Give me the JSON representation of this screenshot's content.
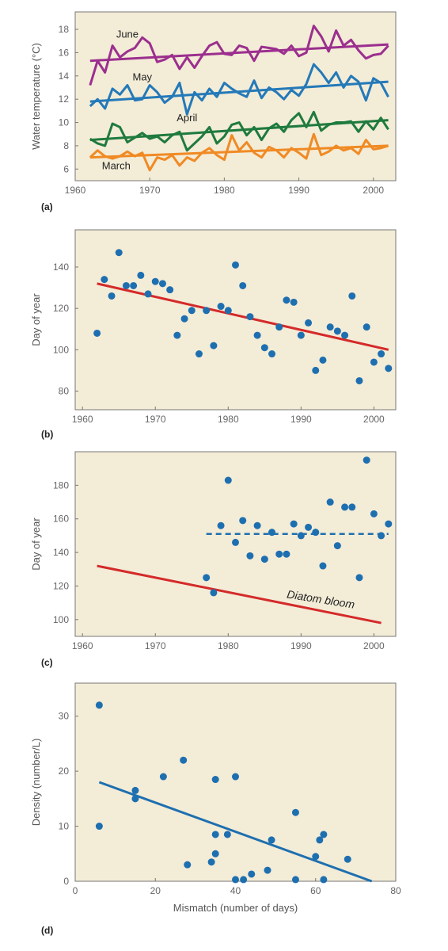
{
  "figure": {
    "panel_labels": [
      "(a)",
      "(b)",
      "(c)",
      "(d)"
    ]
  },
  "chart_data": [
    {
      "id": "a",
      "type": "line",
      "ylabel": "Water temperature (°C)",
      "xlabel": "",
      "xlim": [
        1960,
        2003
      ],
      "ylim": [
        5,
        19.5
      ],
      "xticks": [
        1960,
        1970,
        1980,
        1990,
        2000
      ],
      "yticks": [
        6,
        8,
        10,
        12,
        14,
        16,
        18
      ],
      "x": [
        1962,
        1963,
        1964,
        1965,
        1966,
        1967,
        1968,
        1969,
        1970,
        1971,
        1972,
        1973,
        1974,
        1975,
        1976,
        1977,
        1978,
        1979,
        1980,
        1981,
        1982,
        1983,
        1984,
        1985,
        1986,
        1987,
        1988,
        1989,
        1990,
        1991,
        1992,
        1993,
        1994,
        1995,
        1996,
        1997,
        1998,
        1999,
        2000,
        2001,
        2002
      ],
      "series": [
        {
          "name": "June",
          "color": "#9b2f8e",
          "values": [
            13.2,
            15.3,
            14.3,
            16.6,
            15.6,
            16.1,
            16.4,
            17.3,
            16.8,
            15.2,
            15.4,
            15.8,
            14.6,
            15.6,
            14.7,
            15.7,
            16.6,
            16.9,
            15.9,
            15.8,
            16.6,
            16.4,
            15.3,
            16.5,
            16.4,
            16.3,
            15.9,
            16.6,
            15.7,
            16.0,
            18.3,
            17.4,
            16.1,
            17.9,
            16.6,
            17.1,
            16.2,
            15.5,
            15.8,
            15.9,
            16.6
          ],
          "trend": [
            15.3,
            16.7
          ]
        },
        {
          "name": "May",
          "color": "#2479b8",
          "values": [
            11.4,
            12.0,
            11.2,
            12.9,
            12.4,
            13.2,
            11.9,
            12.0,
            13.2,
            12.6,
            11.7,
            12.2,
            13.4,
            10.7,
            12.6,
            11.9,
            12.9,
            12.2,
            13.4,
            12.9,
            12.5,
            12.2,
            13.6,
            12.1,
            13.0,
            12.6,
            12.0,
            12.8,
            12.3,
            13.3,
            15.0,
            14.3,
            13.4,
            14.3,
            13.0,
            14.0,
            13.5,
            11.9,
            13.8,
            13.4,
            12.2
          ],
          "trend": [
            11.8,
            13.5
          ]
        },
        {
          "name": "April",
          "color": "#1f7a3e",
          "values": [
            8.6,
            8.2,
            8.0,
            9.9,
            9.6,
            8.3,
            8.7,
            9.1,
            8.6,
            8.8,
            8.3,
            8.9,
            9.2,
            7.6,
            8.2,
            8.8,
            9.6,
            8.2,
            8.8,
            9.8,
            10.0,
            8.9,
            9.6,
            8.5,
            9.5,
            9.9,
            9.2,
            10.2,
            10.8,
            9.6,
            10.9,
            9.3,
            9.8,
            10.0,
            10.0,
            10.1,
            9.2,
            10.1,
            9.4,
            10.4,
            9.4
          ],
          "trend": [
            8.5,
            10.2
          ]
        },
        {
          "name": "March",
          "color": "#f08a24",
          "values": [
            7.0,
            7.6,
            7.1,
            6.9,
            7.1,
            7.5,
            7.1,
            7.4,
            5.9,
            7.0,
            6.8,
            7.2,
            6.3,
            7.0,
            6.7,
            7.4,
            7.8,
            7.2,
            6.8,
            8.9,
            7.6,
            8.3,
            7.4,
            7.0,
            7.9,
            7.6,
            7.0,
            7.8,
            7.4,
            6.9,
            9.0,
            7.2,
            7.5,
            8.0,
            7.6,
            7.8,
            7.3,
            8.5,
            7.7,
            7.8,
            8.0
          ],
          "trend": [
            7.0,
            8.0
          ]
        }
      ],
      "series_label_positions": {
        "June": [
          1967,
          17.3
        ],
        "May": [
          1969,
          13.6
        ],
        "April": [
          1975,
          10.1
        ],
        "March": [
          1965.5,
          6.0
        ]
      }
    },
    {
      "id": "b",
      "type": "scatter",
      "ylabel": "Day of year",
      "xlabel": "",
      "xlim": [
        1959,
        2003
      ],
      "ylim": [
        71,
        158
      ],
      "xticks": [
        1960,
        1970,
        1980,
        1990,
        2000
      ],
      "yticks": [
        80,
        100,
        120,
        140
      ],
      "point_color": "#1e6fb0",
      "line_color": "#d42a2a",
      "points": [
        [
          1962,
          108
        ],
        [
          1963,
          134
        ],
        [
          1964,
          126
        ],
        [
          1965,
          147
        ],
        [
          1966,
          131
        ],
        [
          1967,
          131
        ],
        [
          1968,
          136
        ],
        [
          1969,
          127
        ],
        [
          1970,
          133
        ],
        [
          1971,
          132
        ],
        [
          1972,
          129
        ],
        [
          1973,
          107
        ],
        [
          1974,
          115
        ],
        [
          1975,
          119
        ],
        [
          1976,
          98
        ],
        [
          1977,
          119
        ],
        [
          1978,
          102
        ],
        [
          1979,
          121
        ],
        [
          1980,
          119
        ],
        [
          1981,
          141
        ],
        [
          1982,
          131
        ],
        [
          1983,
          116
        ],
        [
          1984,
          107
        ],
        [
          1985,
          101
        ],
        [
          1986,
          98
        ],
        [
          1987,
          111
        ],
        [
          1988,
          124
        ],
        [
          1989,
          123
        ],
        [
          1990,
          107
        ],
        [
          1991,
          113
        ],
        [
          1992,
          90
        ],
        [
          1993,
          95
        ],
        [
          1994,
          111
        ],
        [
          1995,
          109
        ],
        [
          1996,
          107
        ],
        [
          1997,
          126
        ],
        [
          1998,
          85
        ],
        [
          1999,
          111
        ],
        [
          2000,
          94
        ],
        [
          2001,
          98
        ],
        [
          2002,
          91
        ]
      ],
      "trend": [
        [
          1962,
          132
        ],
        [
          2002,
          100
        ]
      ]
    },
    {
      "id": "c",
      "type": "scatter",
      "ylabel": "Day of year",
      "xlabel": "",
      "xlim": [
        1959,
        2003
      ],
      "ylim": [
        90,
        200
      ],
      "xticks": [
        1960,
        1970,
        1980,
        1990,
        2000
      ],
      "yticks": [
        100,
        120,
        140,
        160,
        180
      ],
      "point_color": "#1e6fb0",
      "solid_line_color": "#d42a2a",
      "dashed_line_color": "#1e6fb0",
      "points": [
        [
          1977,
          125
        ],
        [
          1978,
          116
        ],
        [
          1979,
          156
        ],
        [
          1980,
          183
        ],
        [
          1981,
          146
        ],
        [
          1982,
          159
        ],
        [
          1983,
          138
        ],
        [
          1984,
          156
        ],
        [
          1985,
          136
        ],
        [
          1986,
          152
        ],
        [
          1987,
          139
        ],
        [
          1988,
          139
        ],
        [
          1989,
          157
        ],
        [
          1990,
          150
        ],
        [
          1991,
          155
        ],
        [
          1992,
          152
        ],
        [
          1993,
          132
        ],
        [
          1994,
          170
        ],
        [
          1995,
          144
        ],
        [
          1996,
          167
        ],
        [
          1997,
          167
        ],
        [
          1998,
          125
        ],
        [
          1999,
          195
        ],
        [
          2000,
          163
        ],
        [
          2001,
          150
        ],
        [
          2002,
          157
        ]
      ],
      "solid_trend": [
        [
          1962,
          132
        ],
        [
          2001,
          98
        ]
      ],
      "dashed_trend": [
        [
          1977,
          151
        ],
        [
          2002,
          151
        ]
      ],
      "annotation": "Diatom bloom",
      "annotation_position": [
        1988,
        113
      ]
    },
    {
      "id": "d",
      "type": "scatter",
      "ylabel": "Density (number/L)",
      "xlabel": "Mismatch (number of days)",
      "xlim": [
        0,
        80
      ],
      "ylim": [
        0,
        36
      ],
      "xticks": [
        0,
        20,
        40,
        60,
        80
      ],
      "yticks": [
        0,
        10,
        20,
        30
      ],
      "point_color": "#1e6fb0",
      "line_color": "#1e6fb0",
      "points": [
        [
          6,
          32
        ],
        [
          6,
          10
        ],
        [
          15,
          16.5
        ],
        [
          15,
          15
        ],
        [
          22,
          19
        ],
        [
          27,
          22
        ],
        [
          28,
          3
        ],
        [
          34,
          3.5
        ],
        [
          35,
          18.5
        ],
        [
          35,
          8.5
        ],
        [
          35,
          5
        ],
        [
          38,
          8.5
        ],
        [
          40,
          19
        ],
        [
          40,
          0.3
        ],
        [
          42,
          0.3
        ],
        [
          44,
          1.3
        ],
        [
          48,
          2
        ],
        [
          49,
          7.5
        ],
        [
          55,
          12.5
        ],
        [
          55,
          0.3
        ],
        [
          60,
          4.5
        ],
        [
          61,
          7.5
        ],
        [
          62,
          8.5
        ],
        [
          62,
          0.3
        ],
        [
          68,
          4
        ]
      ],
      "trend": [
        [
          6,
          18
        ],
        [
          74,
          0
        ]
      ]
    }
  ]
}
